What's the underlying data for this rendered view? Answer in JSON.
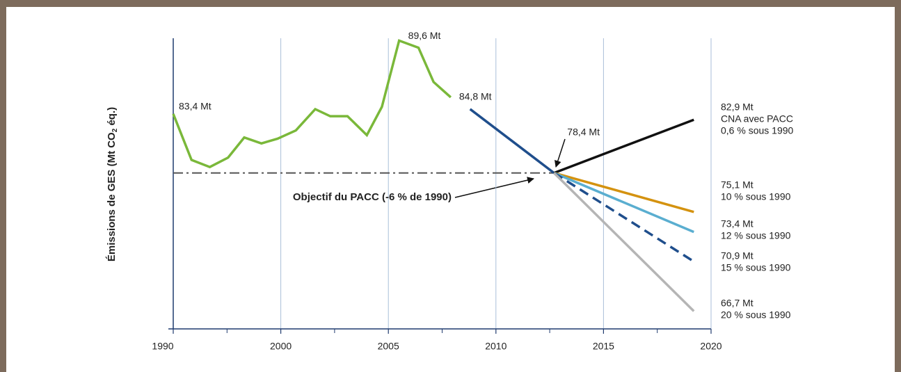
{
  "chart_data": {
    "type": "line",
    "y_label": {
      "text": "Émissions de GES (Mt CO",
      "sub": "2",
      "tail": " éq.)"
    },
    "xlim": [
      1990,
      2020
    ],
    "xticks": [
      1990,
      2000,
      2005,
      2010,
      2015,
      2020
    ],
    "ylim": [
      65.2,
      89.8
    ],
    "target": {
      "value": 78.4,
      "x": [
        1990,
        2012.7
      ],
      "label": "Objectif du PACC (-6 % de 1990)"
    },
    "series": [
      {
        "color": "#7ab83a",
        "dash": false,
        "x": [
          1990,
          1991.7,
          1993.4,
          1995.1,
          1996.6,
          1998.2,
          1999.7,
          2000.7,
          2001.6,
          2002.3,
          2003.1,
          2004.0,
          2004.7,
          2005.5,
          2006.4,
          2007.1,
          2007.9
        ],
        "values": [
          83.4,
          79.5,
          78.9,
          79.7,
          81.4,
          80.9,
          81.3,
          82.0,
          83.8,
          83.2,
          83.2,
          81.6,
          84.0,
          89.6,
          89.0,
          86.1,
          84.8
        ],
        "value_labels": [
          "83,4 Mt",
          null,
          null,
          null,
          null,
          null,
          null,
          null,
          null,
          null,
          null,
          null,
          null,
          "89,6 Mt",
          null,
          null,
          "84,8 Mt"
        ]
      },
      {
        "color": "#1f4e8c",
        "dash": false,
        "x": [
          2008.8,
          2012.7
        ],
        "values": [
          83.8,
          78.4
        ],
        "value_labels": [
          null,
          "78,4 Mt"
        ]
      },
      {
        "color": "#111111",
        "dash": false,
        "x": [
          2012.7,
          2019.2
        ],
        "values": [
          78.4,
          82.9
        ],
        "value_labels": [
          null,
          "82,9 Mt"
        ],
        "notes": [
          "CNA avec PACC",
          "0,6 % sous 1990"
        ]
      },
      {
        "color": "#d4920f",
        "dash": false,
        "x": [
          2012.7,
          2019.2
        ],
        "values": [
          78.4,
          75.1
        ],
        "value_labels": [
          null,
          "75,1 Mt"
        ],
        "notes": [
          "10 % sous 1990"
        ]
      },
      {
        "color": "#5aaed0",
        "dash": false,
        "x": [
          2012.7,
          2019.2
        ],
        "values": [
          78.4,
          73.4
        ],
        "value_labels": [
          null,
          "73,4 Mt"
        ],
        "notes": [
          "12 % sous 1990"
        ]
      },
      {
        "color": "#1f4e8c",
        "dash": true,
        "x": [
          2012.7,
          2019.2
        ],
        "values": [
          78.4,
          70.9
        ],
        "value_labels": [
          null,
          "70,9 Mt"
        ],
        "notes": [
          "15 % sous 1990"
        ]
      },
      {
        "color": "#b5b5b5",
        "dash": false,
        "x": [
          2012.7,
          2019.2
        ],
        "values": [
          78.4,
          66.7
        ],
        "value_labels": [
          null,
          "66,7 Mt"
        ],
        "notes": [
          "20 % sous 1990"
        ]
      }
    ]
  }
}
